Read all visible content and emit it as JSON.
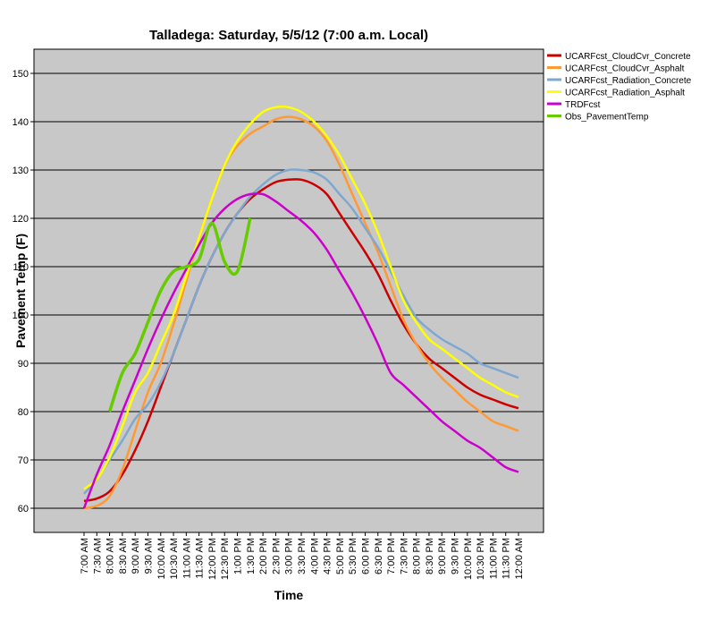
{
  "chart_data": {
    "type": "line",
    "title": "Talladega: Saturday, 5/5/12 (7:00 a.m. Local)",
    "x_label": "Time",
    "y_label": "Pavement Temp (F)",
    "categories": [
      "7:00 AM",
      "7:30 AM",
      "8:00 AM",
      "8:30 AM",
      "9:00 AM",
      "9:30 AM",
      "10:00 AM",
      "10:30 AM",
      "11:00 AM",
      "11:30 AM",
      "12:00 PM",
      "12:30 PM",
      "1:00 PM",
      "1:30 PM",
      "2:00 PM",
      "2:30 PM",
      "3:00 PM",
      "3:30 PM",
      "4:00 PM",
      "4:30 PM",
      "5:00 PM",
      "5:30 PM",
      "6:00 PM",
      "6:30 PM",
      "7:00 PM",
      "7:30 PM",
      "8:00 PM",
      "8:30 PM",
      "9:00 PM",
      "9:30 PM",
      "10:00 PM",
      "10:30 PM",
      "11:00 PM",
      "11:30 PM",
      "12:00 AM"
    ],
    "series": [
      {
        "name": "UCARFcst_CloudCvr_Concrete",
        "color": "#cc0000",
        "values": [
          61.5,
          62,
          63.5,
          67,
          72,
          78,
          85,
          92,
          99,
          106,
          112,
          117,
          121,
          124,
          126,
          127.5,
          128,
          128,
          127,
          125,
          121,
          117,
          113,
          108.5,
          103,
          98,
          94,
          91,
          89,
          87,
          85,
          83.5,
          82.5,
          81.5,
          80.7
        ]
      },
      {
        "name": "UCARFcst_CloudCvr_Asphalt",
        "color": "#ff9933",
        "values": [
          60,
          60.5,
          62.5,
          68,
          76,
          84,
          90,
          98,
          107,
          116,
          124,
          131,
          135,
          137.5,
          139,
          140.5,
          141,
          140.5,
          139,
          136,
          131,
          125,
          119,
          113,
          106,
          99,
          94,
          90,
          87,
          84.5,
          82,
          80,
          78,
          77,
          76
        ]
      },
      {
        "name": "UCARFcst_Radiation_Concrete",
        "color": "#7fa8d0",
        "values": [
          63,
          66,
          70,
          74,
          78.5,
          81.5,
          86,
          92,
          99,
          106,
          112,
          117,
          121,
          124.5,
          127,
          129,
          130,
          130,
          129.5,
          128,
          125,
          122,
          118,
          114,
          109,
          104,
          99.5,
          97,
          95,
          93.5,
          92,
          90,
          89,
          88,
          87
        ]
      },
      {
        "name": "UCARFcst_Radiation_Asphalt",
        "color": "#ffff00",
        "values": [
          64,
          66,
          70.5,
          77,
          84,
          88,
          94,
          100,
          108,
          116,
          124,
          131,
          136,
          139.5,
          142,
          143,
          143,
          142,
          140,
          137,
          133,
          128,
          123,
          117,
          110,
          103,
          98.5,
          95,
          93,
          91,
          89,
          87,
          85.5,
          84,
          83
        ]
      },
      {
        "name": "TRDFcst",
        "color": "#cc00cc",
        "values": [
          60,
          67,
          73,
          80,
          86.5,
          93,
          99,
          104.5,
          109.5,
          114.5,
          119,
          122,
          124,
          125,
          125,
          123.5,
          121.5,
          119.5,
          117,
          113.5,
          109,
          104.5,
          99.5,
          94,
          88,
          85.5,
          83,
          80.5,
          78,
          76,
          74,
          72.5,
          70.5,
          68.5,
          67.5
        ]
      },
      {
        "name": "Obs_PavementTemp",
        "color": "#66cc00",
        "values": [
          null,
          null,
          80,
          88,
          92,
          98.5,
          105,
          109,
          110,
          111.5,
          119,
          111,
          109,
          120,
          null,
          null,
          null,
          null,
          null,
          null,
          null,
          null,
          null,
          null,
          null,
          null,
          null,
          null,
          null,
          null,
          null,
          null,
          null,
          null,
          null
        ]
      }
    ],
    "ylim": [
      55,
      155
    ],
    "yticks": [
      60,
      70,
      80,
      90,
      100,
      110,
      120,
      130,
      140,
      150
    ],
    "grid": true,
    "legend": "right"
  }
}
